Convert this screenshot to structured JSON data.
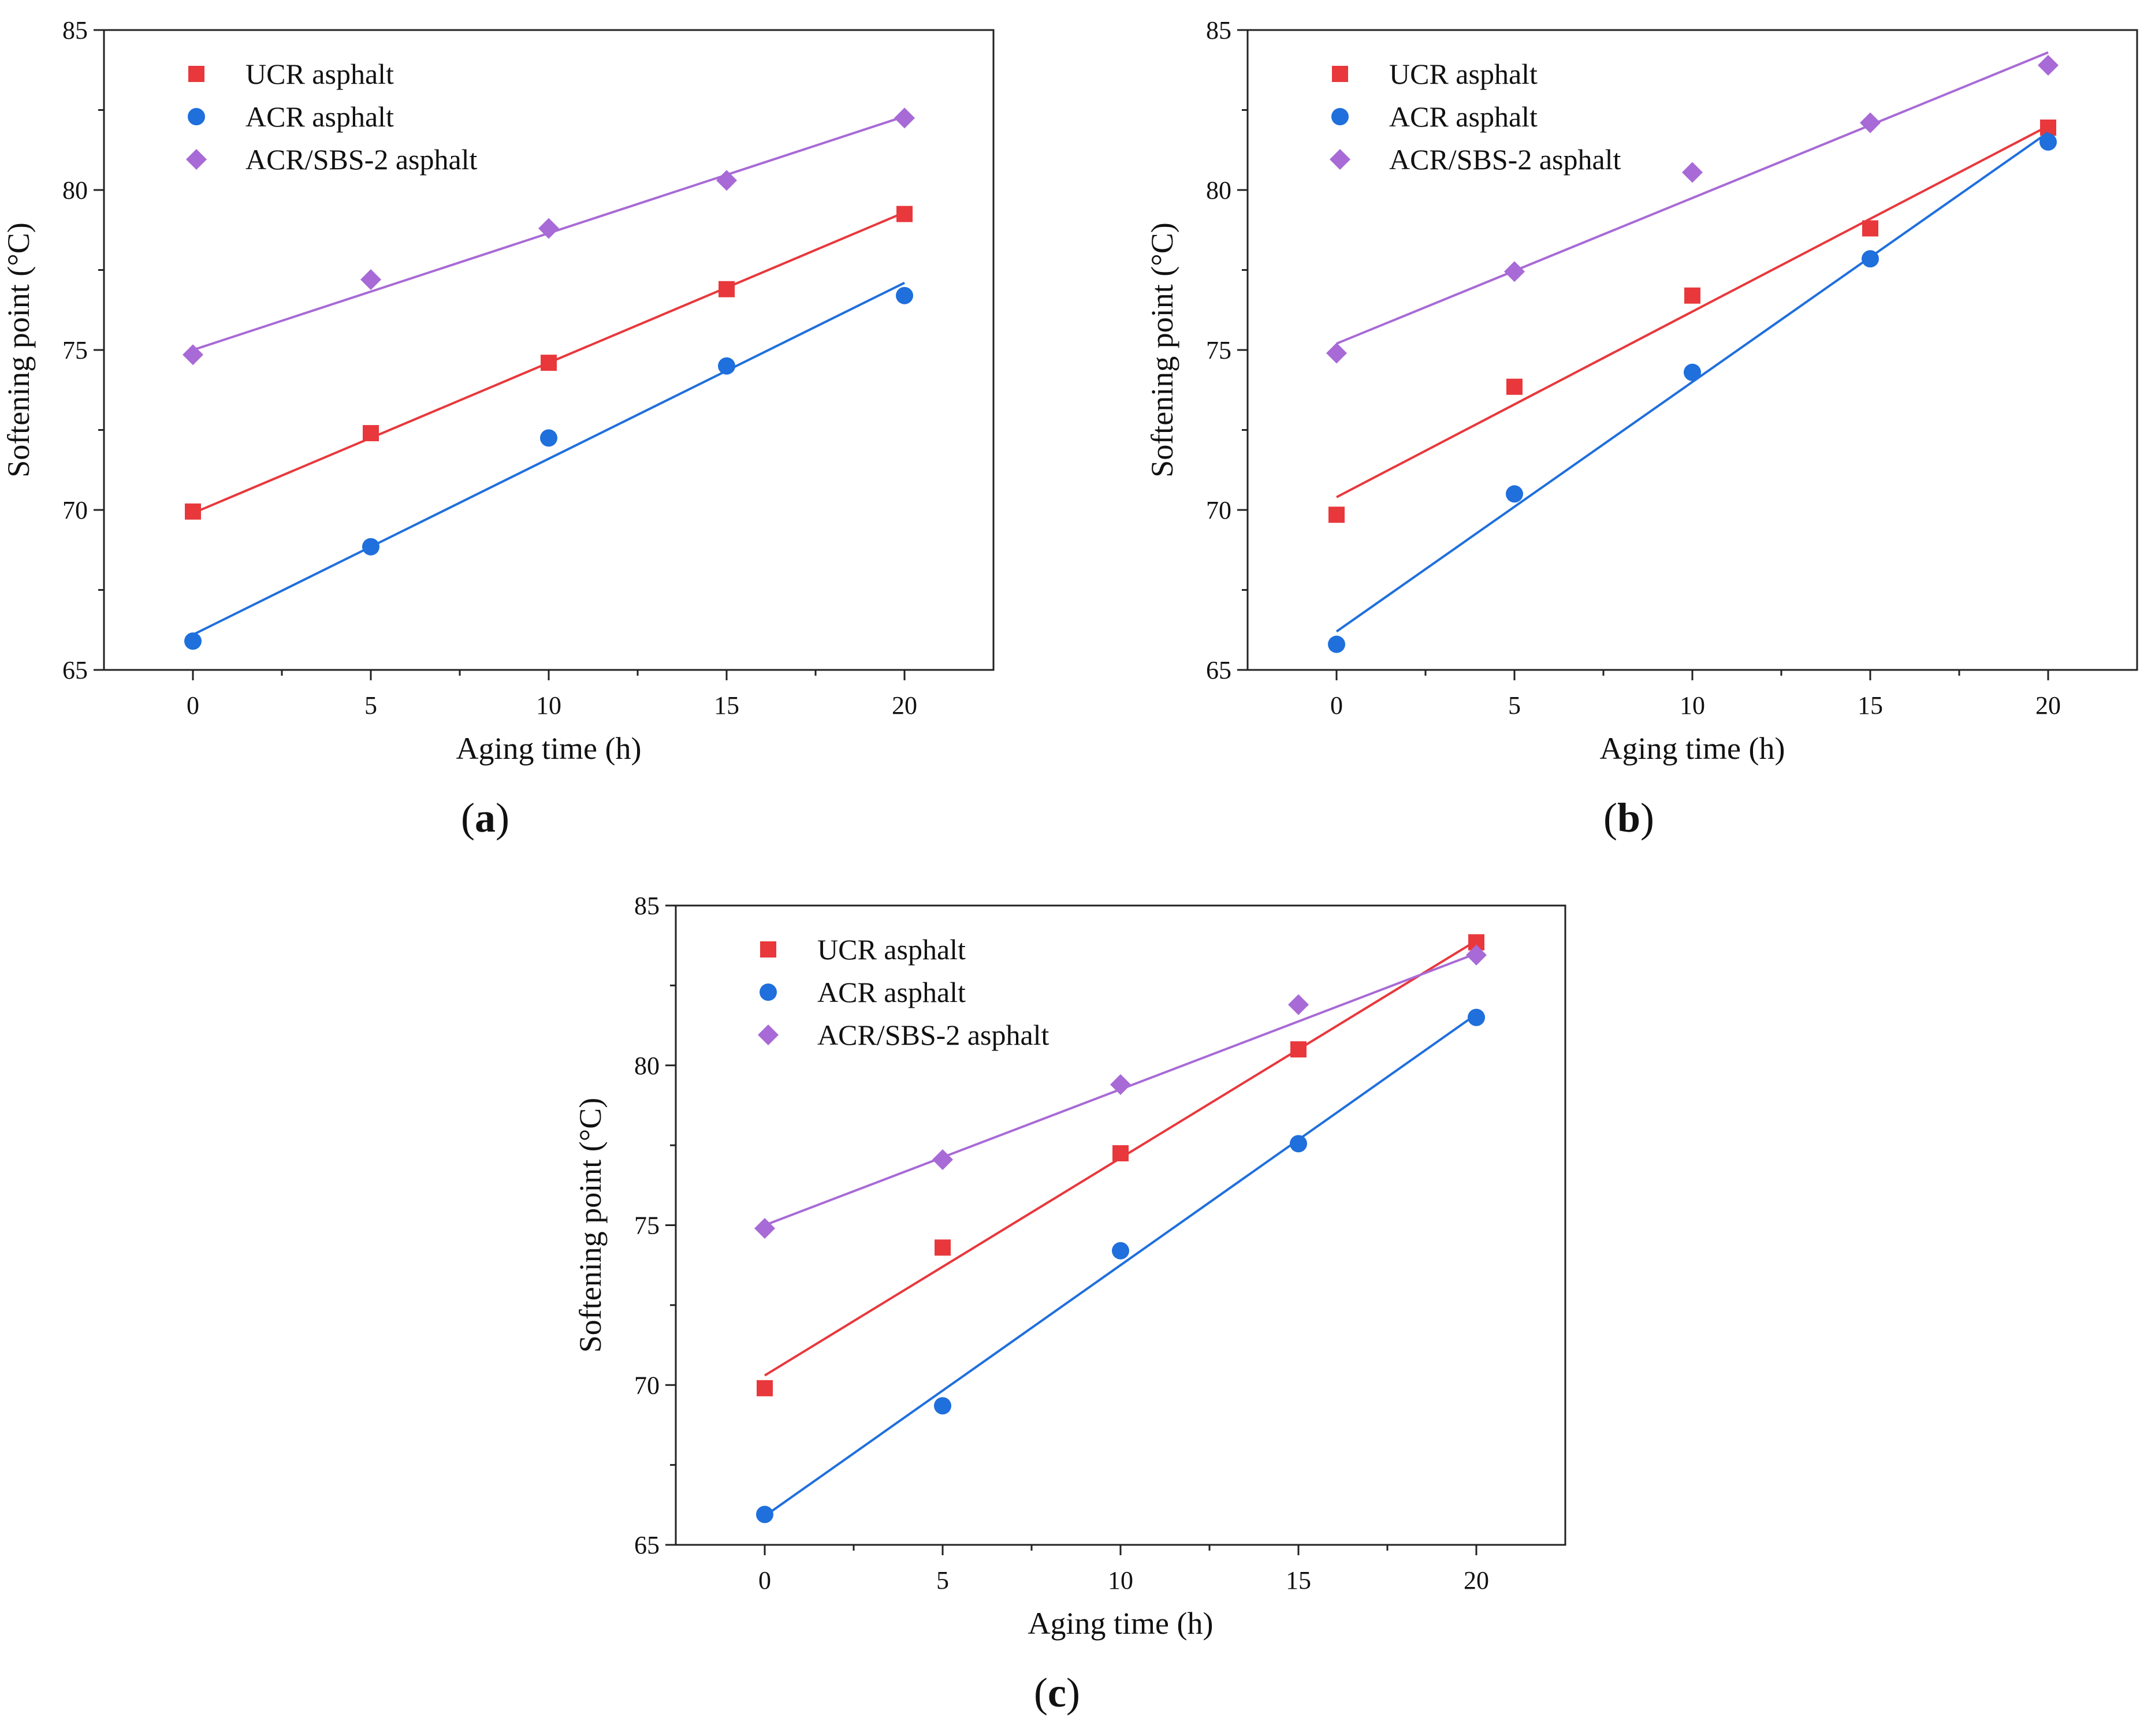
{
  "figure": {
    "colors": {
      "ucr": "#e8383c",
      "acr": "#1f6fdc",
      "sbs": "#a86ad6",
      "axis": "#222222"
    },
    "marker_shapes": [
      "square",
      "circle",
      "diamond"
    ]
  },
  "chart_data": [
    {
      "type": "scatter",
      "panel_label": "a",
      "title": "",
      "xlabel": "Aging time (h)",
      "ylabel": "Softening point (°C)",
      "xlim": [
        -2.5,
        22.5
      ],
      "ylim": [
        65,
        85
      ],
      "xticks": [
        0,
        5,
        10,
        15,
        20
      ],
      "yticks": [
        65,
        70,
        75,
        80,
        85
      ],
      "legend_position": "top-left",
      "x": [
        0,
        5,
        10,
        15,
        20
      ],
      "series": [
        {
          "name": "UCR asphalt",
          "marker": "square",
          "color": "#e8383c",
          "values": [
            69.95,
            72.4,
            74.6,
            76.9,
            79.25
          ],
          "fit": [
            69.9,
            79.3
          ]
        },
        {
          "name": "ACR asphalt",
          "marker": "circle",
          "color": "#1f6fdc",
          "values": [
            65.9,
            68.85,
            72.25,
            74.5,
            76.7
          ],
          "fit": [
            66.1,
            77.1
          ]
        },
        {
          "name": "ACR/SBS-2 asphalt",
          "marker": "diamond",
          "color": "#a86ad6",
          "values": [
            74.85,
            77.2,
            78.8,
            80.3,
            82.25
          ],
          "fit": [
            75.0,
            82.3
          ]
        }
      ]
    },
    {
      "type": "scatter",
      "panel_label": "b",
      "title": "",
      "xlabel": "Aging time (h)",
      "ylabel": "Softening point (°C)",
      "xlim": [
        -2.5,
        22.5
      ],
      "ylim": [
        65,
        85
      ],
      "xticks": [
        0,
        5,
        10,
        15,
        20
      ],
      "yticks": [
        65,
        70,
        75,
        80,
        85
      ],
      "legend_position": "top-left",
      "x": [
        0,
        5,
        10,
        15,
        20
      ],
      "series": [
        {
          "name": "UCR asphalt",
          "marker": "square",
          "color": "#e8383c",
          "values": [
            69.85,
            73.85,
            76.7,
            78.8,
            81.95
          ],
          "fit": [
            70.4,
            82.0
          ]
        },
        {
          "name": "ACR asphalt",
          "marker": "circle",
          "color": "#1f6fdc",
          "values": [
            65.8,
            70.5,
            74.3,
            77.85,
            81.5
          ],
          "fit": [
            66.2,
            81.8
          ]
        },
        {
          "name": "ACR/SBS-2 asphalt",
          "marker": "diamond",
          "color": "#a86ad6",
          "values": [
            74.9,
            77.45,
            80.55,
            82.1,
            83.9
          ],
          "fit": [
            75.2,
            84.3
          ]
        }
      ]
    },
    {
      "type": "scatter",
      "panel_label": "c",
      "title": "",
      "xlabel": "Aging time (h)",
      "ylabel": "Softening point (°C)",
      "xlim": [
        -2.5,
        22.5
      ],
      "ylim": [
        65,
        85
      ],
      "xticks": [
        0,
        5,
        10,
        15,
        20
      ],
      "yticks": [
        65,
        70,
        75,
        80,
        85
      ],
      "legend_position": "top-left",
      "x": [
        0,
        5,
        10,
        15,
        20
      ],
      "series": [
        {
          "name": "UCR asphalt",
          "marker": "square",
          "color": "#e8383c",
          "values": [
            69.9,
            74.3,
            77.25,
            80.5,
            83.85
          ],
          "fit": [
            70.3,
            83.9
          ]
        },
        {
          "name": "ACR asphalt",
          "marker": "circle",
          "color": "#1f6fdc",
          "values": [
            65.95,
            69.35,
            74.2,
            77.55,
            81.5
          ],
          "fit": [
            65.9,
            81.6
          ]
        },
        {
          "name": "ACR/SBS-2 asphalt",
          "marker": "diamond",
          "color": "#a86ad6",
          "values": [
            74.9,
            77.05,
            79.4,
            81.9,
            83.45
          ],
          "fit": [
            75.0,
            83.5
          ]
        }
      ]
    }
  ]
}
